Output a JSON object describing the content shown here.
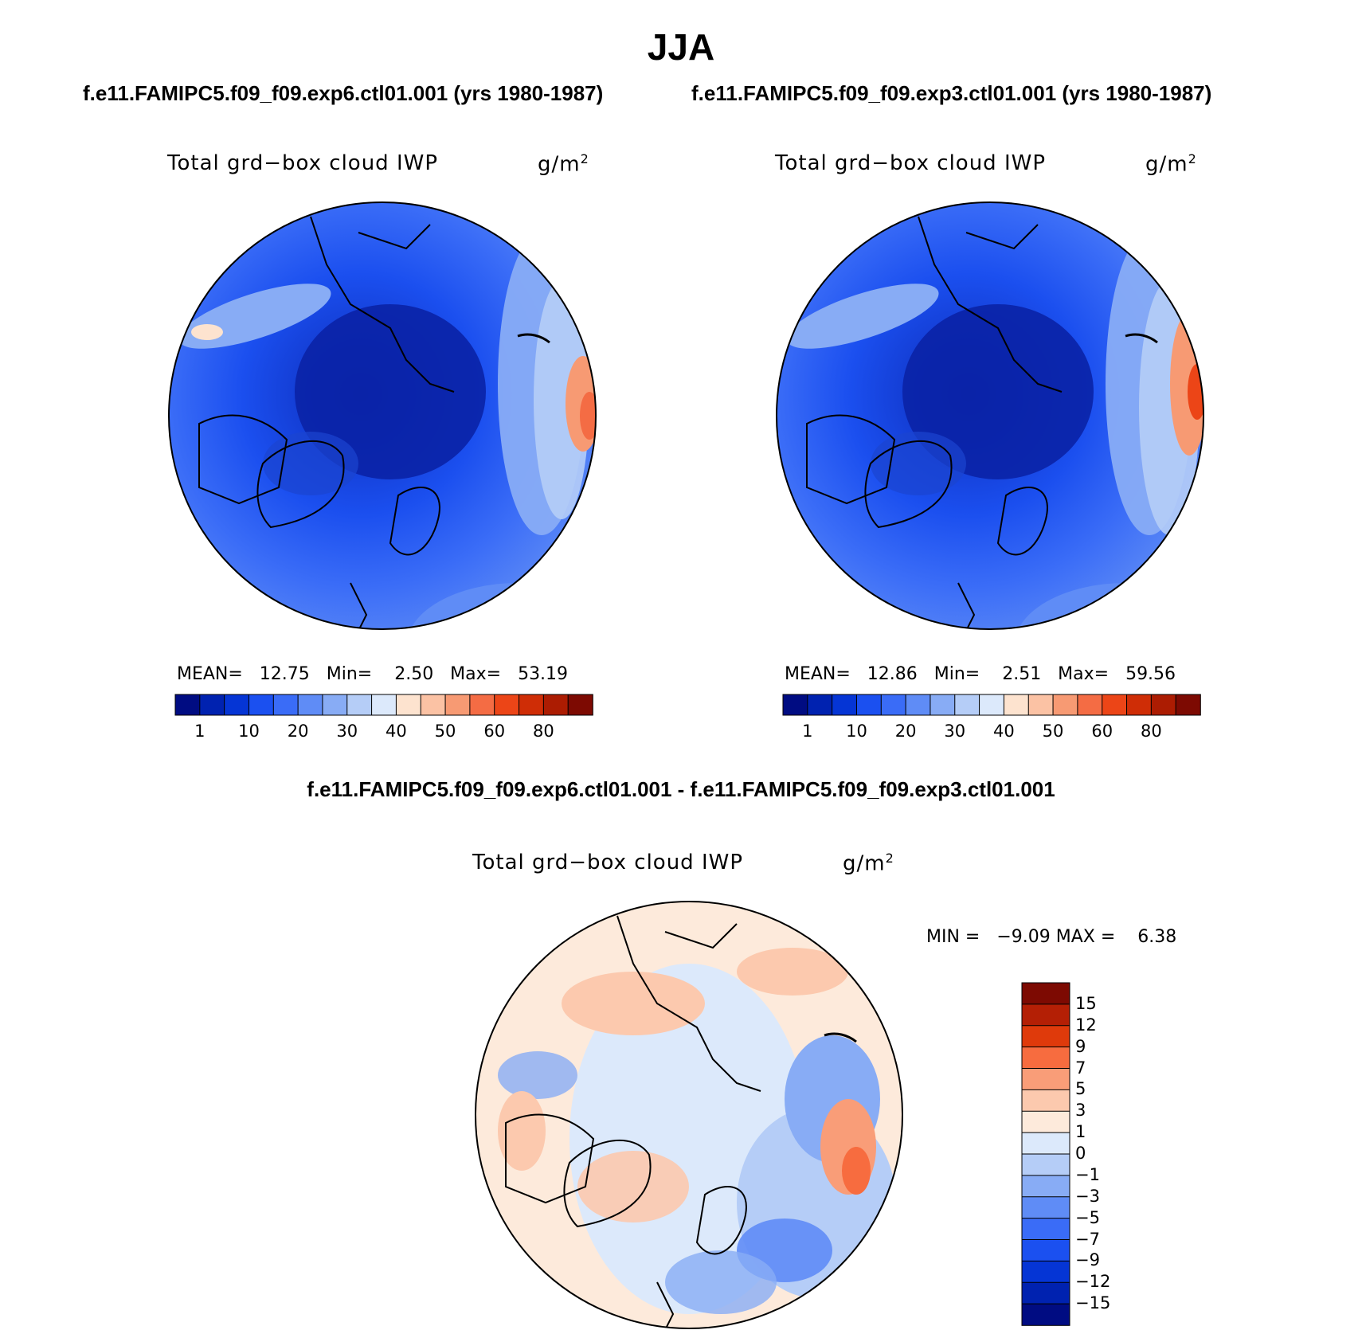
{
  "figure": {
    "title": "JJA",
    "difference_title": "f.e11.FAMIPC5.f09_f09.exp6.ctl01.001 - f.e11.FAMIPC5.f09_f09.exp3.ctl01.001"
  },
  "panels": [
    {
      "run_title": "f.e11.FAMIPC5.f09_f09.exp6.ctl01.001 (yrs 1980-1987)",
      "variable": "Total grd−box cloud IWP",
      "units_base": "g/m",
      "units_sup": "2",
      "stats": "MEAN=   12.75   Min=    2.50   Max=   53.19",
      "mean": 12.75,
      "min": 2.5,
      "max": 53.19
    },
    {
      "run_title": "f.e11.FAMIPC5.f09_f09.exp3.ctl01.001 (yrs 1980-1987)",
      "variable": "Total grd−box cloud IWP",
      "units_base": "g/m",
      "units_sup": "2",
      "stats": "MEAN=   12.86   Min=    2.51   Max=   59.56",
      "mean": 12.86,
      "min": 2.51,
      "max": 59.56
    }
  ],
  "difference_panel": {
    "variable": "Total grd−box cloud IWP",
    "units_base": "g/m",
    "units_sup": "2",
    "stats": "MIN =   −9.09 MAX =    6.38",
    "min": -9.09,
    "max": 6.38
  },
  "colorbar_abs": {
    "colors": [
      "#000c82",
      "#0022b0",
      "#0535d5",
      "#1b50f0",
      "#3a6cf7",
      "#5f8cf6",
      "#88acf5",
      "#b5cdf7",
      "#dce9fb",
      "#fde3cf",
      "#fbc2a4",
      "#f79a73",
      "#f46c44",
      "#ec4517",
      "#cf2d06",
      "#ac1c02",
      "#7d0a02"
    ],
    "tick_labels": [
      "1",
      "10",
      "20",
      "30",
      "40",
      "50",
      "60",
      "80"
    ]
  },
  "colorbar_diff": {
    "colors_top_to_bottom": [
      "#7d0a02",
      "#b41f05",
      "#df3a0b",
      "#f76c3f",
      "#f99d78",
      "#fcc9ae",
      "#fdeadb",
      "#dce9fb",
      "#b5cdf7",
      "#88acf5",
      "#5f8cf6",
      "#3a6cf7",
      "#1b50f0",
      "#0535d5",
      "#0022b0",
      "#000c82"
    ],
    "tick_labels": [
      "15",
      "12",
      "9",
      "7",
      "5",
      "3",
      "1",
      "0",
      "−1",
      "−3",
      "−5",
      "−7",
      "−9",
      "−12",
      "−15"
    ]
  }
}
